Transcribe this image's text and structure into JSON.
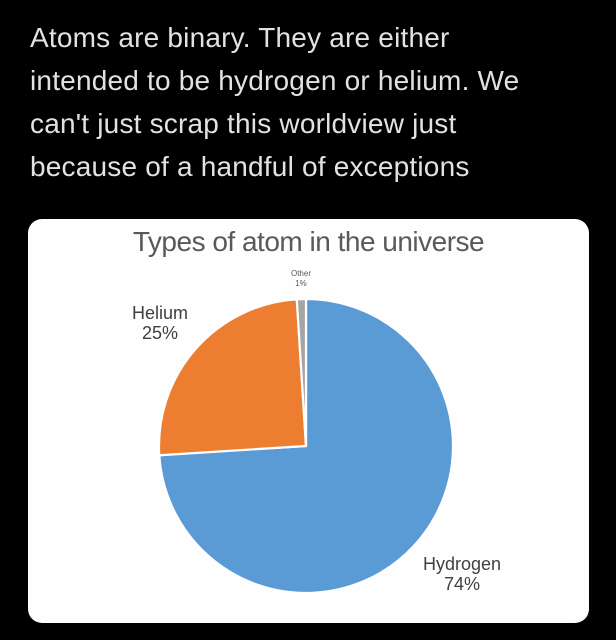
{
  "post": {
    "text": "Atoms are binary. They are either\nintended to be hydrogen or helium. We\ncan't just scrap this worldview just\nbecause of a handful of exceptions"
  },
  "chart_data": {
    "type": "pie",
    "title": "Types of atom in the universe",
    "slices": [
      {
        "label": "Hydrogen",
        "value": 74,
        "percent_label": "74%",
        "color": "#5B9BD5"
      },
      {
        "label": "Helium",
        "value": 25,
        "percent_label": "25%",
        "color": "#ED7D31"
      },
      {
        "label": "Other",
        "value": 1,
        "percent_label": "1%",
        "color": "#A5A5A5"
      }
    ],
    "start_angle_deg": 0,
    "direction": "clockwise",
    "slice_border_color": "#FFFFFF",
    "legend": "none",
    "label_style": "category name + percentage, outside slices"
  },
  "colors": {
    "page_background": "#000000",
    "card_background": "#FEFEFE",
    "post_text": "#E0E2E4",
    "chart_title_text": "#595959",
    "slice_label_text": "#404040"
  }
}
